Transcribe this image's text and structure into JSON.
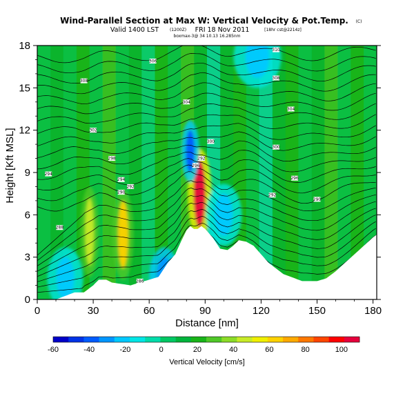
{
  "header": {
    "title": "Wind-Parallel Section at Max W: Vertical Velocity & Pot.Temp.",
    "title_mark": "(C)",
    "valid_line": "Valid 1400 LST",
    "valid_utc": "(1200Z)",
    "valid_date": "FRI 18 Nov 2011",
    "run_info": "[18hr cst@2214z]",
    "footer_id": "boxmax-3@ 34 10.13 16.285nm"
  },
  "chart_data": {
    "type": "heatmap",
    "xlabel": "Distance [nm]",
    "ylabel": "Height [Kft MSL]",
    "xlim": [
      0,
      182
    ],
    "ylim": [
      0,
      18
    ],
    "xticks": [
      0,
      30,
      60,
      90,
      120,
      150,
      180
    ],
    "yticks": [
      0,
      3,
      6,
      9,
      12,
      15,
      18
    ],
    "colorbar": {
      "title": "Vertical Velocity [cm/s]",
      "min": -60,
      "max": 110,
      "ticks": [
        -60,
        -40,
        -20,
        0,
        20,
        40,
        60,
        80,
        100
      ],
      "colors": [
        "#0000c8",
        "#0033e6",
        "#005cff",
        "#0096ff",
        "#00c8ff",
        "#00e6e6",
        "#00dcaa",
        "#00c864",
        "#00b43c",
        "#19b419",
        "#50c828",
        "#8cdc28",
        "#c8eb28",
        "#f0f000",
        "#ffd200",
        "#ffaa00",
        "#ff7800",
        "#ff4600",
        "#ff0000",
        "#e6003c"
      ]
    },
    "terrain_profile": [
      [
        0,
        0
      ],
      [
        10,
        0
      ],
      [
        20,
        0.5
      ],
      [
        25,
        0.5
      ],
      [
        30,
        1.0
      ],
      [
        33,
        1.4
      ],
      [
        37,
        1.4
      ],
      [
        40,
        1.2
      ],
      [
        50,
        1.0
      ],
      [
        55,
        1.2
      ],
      [
        60,
        1.4
      ],
      [
        65,
        1.6
      ],
      [
        70,
        2.6
      ],
      [
        74,
        3.2
      ],
      [
        77,
        4.1
      ],
      [
        80,
        4.9
      ],
      [
        82,
        5.2
      ],
      [
        84,
        5.0
      ],
      [
        86,
        5.0
      ],
      [
        88,
        5.2
      ],
      [
        90,
        5.0
      ],
      [
        94,
        4.4
      ],
      [
        98,
        3.6
      ],
      [
        102,
        3.5
      ],
      [
        105,
        3.8
      ],
      [
        108,
        4.2
      ],
      [
        112,
        4.1
      ],
      [
        116,
        3.8
      ],
      [
        120,
        3.2
      ],
      [
        124,
        2.6
      ],
      [
        128,
        2.2
      ],
      [
        132,
        1.8
      ],
      [
        136,
        1.6
      ],
      [
        142,
        1.3
      ],
      [
        150,
        1.3
      ],
      [
        155,
        1.5
      ],
      [
        160,
        2.0
      ],
      [
        165,
        2.6
      ],
      [
        170,
        3.2
      ],
      [
        175,
        3.8
      ],
      [
        180,
        4.4
      ],
      [
        182,
        4.6
      ]
    ],
    "theta_labels": [
      {
        "x": 25,
        "y": 15.5,
        "text": "308"
      },
      {
        "x": 62,
        "y": 16.9,
        "text": "306"
      },
      {
        "x": 80,
        "y": 14.0,
        "text": "304"
      },
      {
        "x": 128,
        "y": 15.7,
        "text": "308"
      },
      {
        "x": 128,
        "y": 17.7,
        "text": "310"
      },
      {
        "x": 136,
        "y": 13.5,
        "text": "304"
      },
      {
        "x": 30,
        "y": 12.0,
        "text": "302"
      },
      {
        "x": 93,
        "y": 11.2,
        "text": "300"
      },
      {
        "x": 128,
        "y": 10.8,
        "text": "300"
      },
      {
        "x": 40,
        "y": 10.0,
        "text": "298"
      },
      {
        "x": 85,
        "y": 9.5,
        "text": "296"
      },
      {
        "x": 138,
        "y": 8.6,
        "text": "296"
      },
      {
        "x": 6,
        "y": 8.9,
        "text": "294"
      },
      {
        "x": 45,
        "y": 8.5,
        "text": "294"
      },
      {
        "x": 50,
        "y": 8.0,
        "text": "292"
      },
      {
        "x": 88,
        "y": 10.0,
        "text": "292"
      },
      {
        "x": 126,
        "y": 7.4,
        "text": "292"
      },
      {
        "x": 150,
        "y": 7.1,
        "text": "290"
      },
      {
        "x": 45,
        "y": 7.6,
        "text": "290"
      },
      {
        "x": 12,
        "y": 5.1,
        "text": "288"
      },
      {
        "x": 55,
        "y": 1.3,
        "text": "286"
      }
    ],
    "features": [
      {
        "type": "updraft",
        "x": 28,
        "y": 4.8,
        "w": 3,
        "value": 50
      },
      {
        "type": "updraft",
        "x": 46,
        "y": 4.6,
        "w": 3.5,
        "value": 60
      },
      {
        "type": "updraft",
        "x": 87,
        "y": 7.5,
        "w": 4,
        "value": 105
      },
      {
        "type": "downdraft",
        "x": 68,
        "y": 1.5,
        "w": 5,
        "value": -30
      },
      {
        "type": "downdraft",
        "x": 15,
        "y": 1.5,
        "w": 6,
        "value": -25
      },
      {
        "type": "downdraft",
        "x": 100,
        "y": 6.0,
        "w": 6,
        "value": -20
      },
      {
        "type": "downdraft",
        "x": 82,
        "y": 10.5,
        "w": 3,
        "value": -35
      },
      {
        "type": "downdraft",
        "x": 118,
        "y": 17.2,
        "w": 8,
        "value": -20
      }
    ]
  }
}
